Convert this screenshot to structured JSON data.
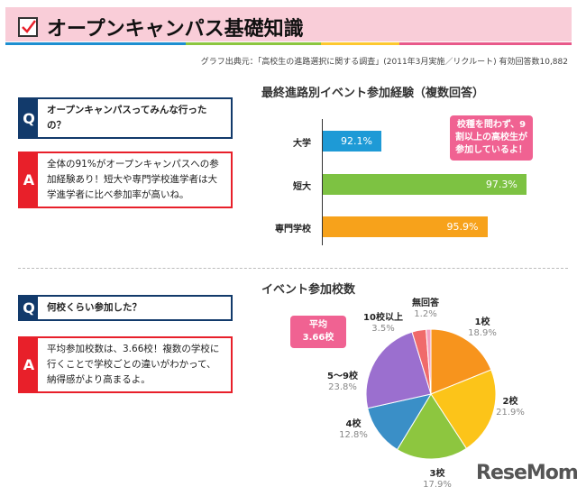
{
  "header": {
    "title": "オープンキャンパス基礎知識",
    "source": "グラフ出典元：「高校生の進路選択に関する調査」(2011年3月実施／リクルート) 有効回答数10,882",
    "stripe_colors": [
      "#1e8fd0",
      "#8cc63f",
      "#fdc82f",
      "#e8598a"
    ]
  },
  "qa": [
    {
      "q_tag": "Q",
      "q": "オープンキャンパスってみんな行ったの？",
      "a_tag": "A",
      "a": "全体の91%がオープンキャンパスへの参加経験あり！短大や専門学校進学者は大学進学者に比べ参加率が高いね。"
    },
    {
      "q_tag": "Q",
      "q": "何校くらい参加した？",
      "a_tag": "A",
      "a": "平均参加校数は、3.66校！複数の学校に行くことで学校ごとの違いがわかって、納得感がより高まるよ。"
    }
  ],
  "chart_data": [
    {
      "type": "bar",
      "orientation": "horizontal",
      "title": "最終進路別イベント参加経験（複数回答）",
      "categories": [
        "大学",
        "短大",
        "専門学校"
      ],
      "values": [
        92.1,
        97.3,
        95.9
      ],
      "value_labels": [
        "92.1%",
        "97.3%",
        "95.9%"
      ],
      "colors": [
        "#1e9ad6",
        "#7dc242",
        "#f7a21b"
      ],
      "xlim": [
        90,
        97.5
      ],
      "annotation": "校種を問わず、9割以上の高校生が参加しているよ！"
    },
    {
      "type": "pie",
      "title": "イベント参加校数",
      "categories": [
        "1校",
        "2校",
        "3校",
        "4校",
        "5～9校",
        "10校以上",
        "無回答"
      ],
      "values": [
        18.9,
        21.9,
        17.9,
        12.8,
        23.8,
        3.5,
        1.2
      ],
      "value_labels": [
        "18.9%",
        "21.9%",
        "17.9%",
        "12.8%",
        "23.8%",
        "3.5%",
        "1.2%"
      ],
      "colors": [
        "#f7941d",
        "#fcc419",
        "#8dc63f",
        "#3a8fc7",
        "#9b6fcf",
        "#f06a6a",
        "#f4a0c0"
      ],
      "annotation": [
        "平均",
        "3.66校"
      ]
    }
  ],
  "logo": "ReseMom"
}
